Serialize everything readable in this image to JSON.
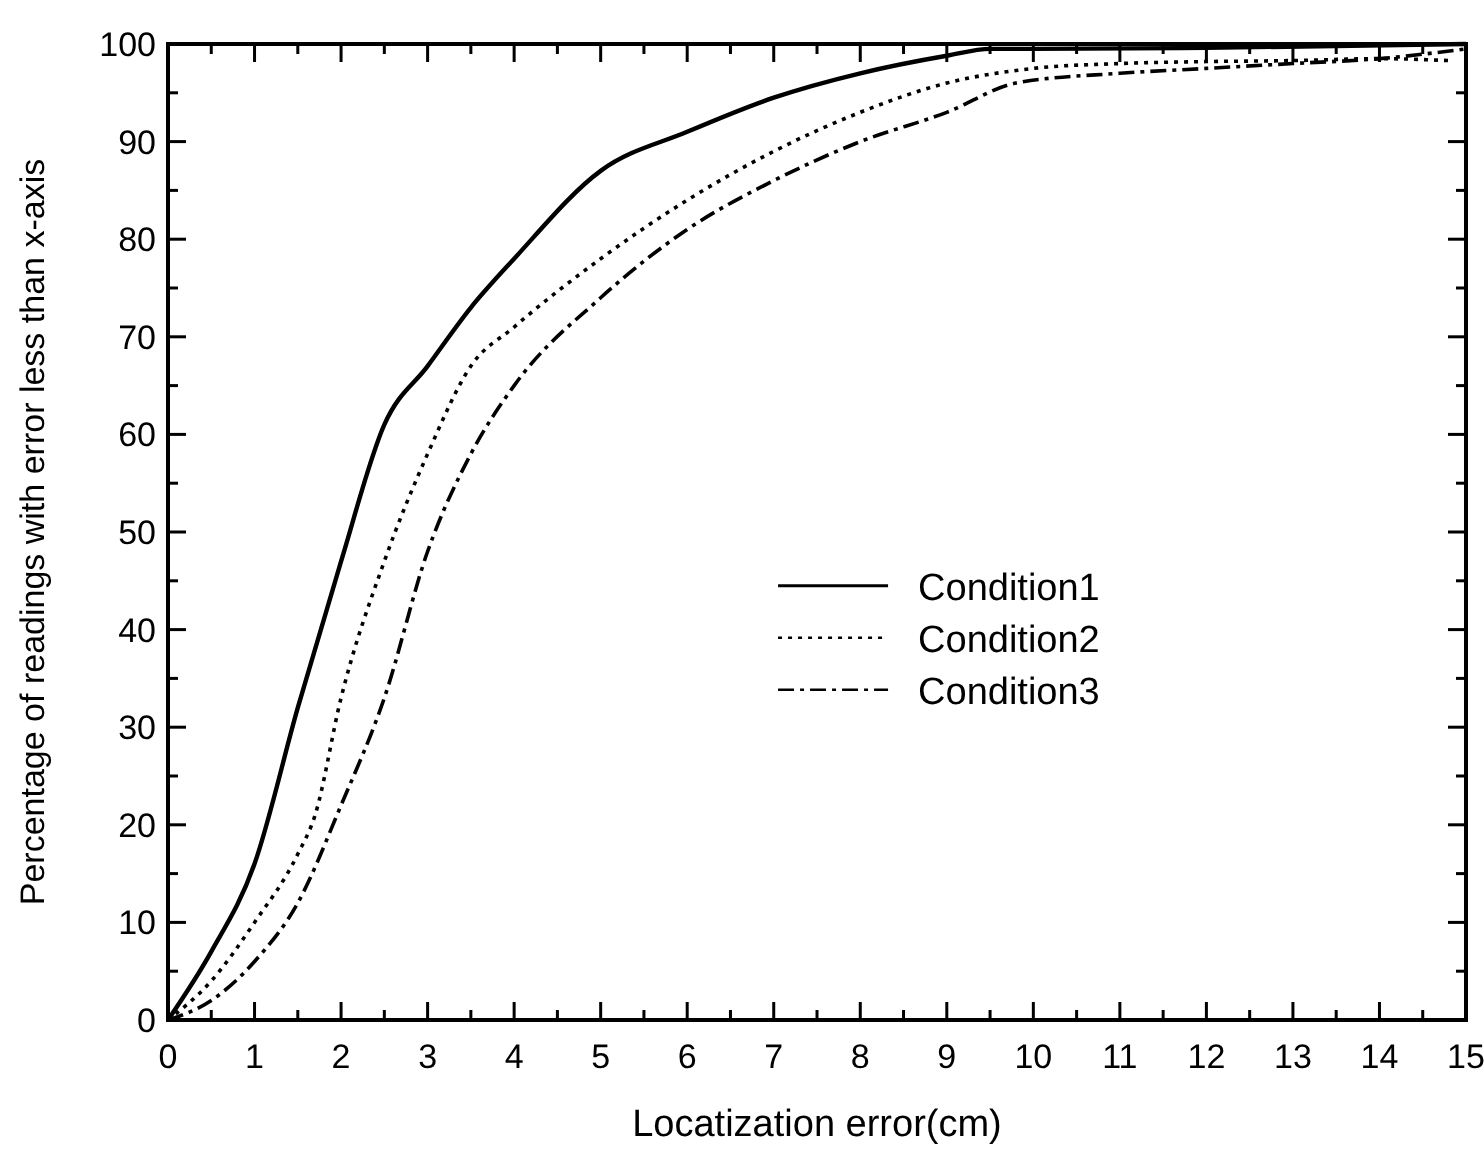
{
  "chart_data": {
    "type": "line",
    "xlabel": "Locatization error(cm)",
    "ylabel": "Percentage of readings with error less than x-axis",
    "xlim": [
      0,
      15
    ],
    "ylim": [
      0,
      100
    ],
    "xticks": [
      0,
      {
        "value": 0.5,
        "label": null
      },
      1,
      {
        "value": 1.5,
        "label": null
      },
      2,
      {
        "value": 2.5,
        "label": null
      },
      3,
      {
        "value": 3.5,
        "label": null
      },
      4,
      {
        "value": 4.5,
        "label": null
      },
      5,
      {
        "value": 5.5,
        "label": null
      },
      6,
      {
        "value": 6.5,
        "label": null
      },
      7,
      {
        "value": 7.5,
        "label": null
      },
      8,
      {
        "value": 8.5,
        "label": null
      },
      9,
      {
        "value": 9.5,
        "label": null
      },
      10,
      {
        "value": 10.5,
        "label": null
      },
      11,
      {
        "value": 11.5,
        "label": null
      },
      12,
      {
        "value": 12.5,
        "label": null
      },
      13,
      {
        "value": 13.5,
        "label": null
      },
      14,
      {
        "value": 14.5,
        "label": null
      },
      15
    ],
    "yticks": [
      0,
      {
        "value": 5,
        "label": null
      },
      10,
      {
        "value": 15,
        "label": null
      },
      20,
      {
        "value": 25,
        "label": null
      },
      30,
      {
        "value": 35,
        "label": null
      },
      40,
      {
        "value": 45,
        "label": null
      },
      50,
      {
        "value": 55,
        "label": null
      },
      60,
      {
        "value": 65,
        "label": null
      },
      70,
      {
        "value": 75,
        "label": null
      },
      80,
      {
        "value": 85,
        "label": null
      },
      90,
      {
        "value": 95,
        "label": null
      },
      100
    ],
    "grid": false,
    "legend": "right",
    "series": [
      {
        "name": "Condition1",
        "color": "#000000",
        "line_style": "solid",
        "x": [
          0,
          0.5,
          1,
          1.5,
          2,
          2.5,
          3,
          3.5,
          4,
          5,
          6,
          7,
          8,
          9,
          9.5,
          10,
          12,
          15
        ],
        "values": [
          0,
          7,
          16,
          32,
          47,
          61,
          67,
          73,
          78,
          87,
          91,
          94.5,
          97,
          98.8,
          99.5,
          99.5,
          99.6,
          100
        ]
      },
      {
        "name": "Condition2",
        "color": "#000000",
        "line_style": "dotted",
        "x": [
          0,
          0.5,
          1,
          1.5,
          1.7,
          2,
          2.5,
          3,
          3.5,
          4,
          5,
          6,
          7,
          8,
          9,
          10,
          11,
          12,
          13,
          14,
          14.8
        ],
        "values": [
          0,
          4,
          10,
          17,
          21,
          33,
          47,
          58,
          67,
          71,
          78,
          84,
          89,
          93,
          96,
          97.5,
          98,
          98.2,
          98.3,
          98.5,
          98.3
        ]
      },
      {
        "name": "Condition3",
        "color": "#000000",
        "line_style": "dashed",
        "x": [
          0,
          0.5,
          1,
          1.5,
          2,
          2.5,
          3,
          3.5,
          4,
          5,
          6,
          7,
          8,
          9,
          9.8,
          11,
          12,
          13,
          14,
          15
        ],
        "values": [
          0,
          2,
          6,
          12,
          22,
          33,
          48,
          58,
          65,
          74,
          81,
          86,
          90,
          93,
          96,
          97,
          97.5,
          98,
          98.5,
          99.5
        ]
      }
    ]
  }
}
